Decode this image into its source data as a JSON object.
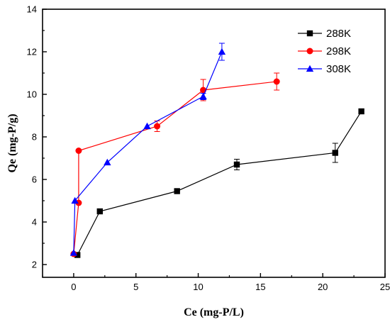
{
  "chart_data": {
    "type": "line",
    "xlabel": "Ce (mg-P/L)",
    "ylabel": "Qe (mg-P/g)",
    "xlim": [
      -2.5,
      25
    ],
    "ylim": [
      1.4,
      14
    ],
    "xticks": [
      0,
      5,
      10,
      15,
      20,
      25
    ],
    "yticks": [
      2,
      4,
      6,
      8,
      10,
      12,
      14
    ],
    "legend_position": "top-right",
    "grid": false,
    "series": [
      {
        "name": "288K",
        "color": "#000000",
        "marker": "square",
        "points": [
          {
            "x": 0.3,
            "y": 2.45,
            "err": 0
          },
          {
            "x": 2.1,
            "y": 4.5,
            "err": 0
          },
          {
            "x": 8.3,
            "y": 5.45,
            "err": 0
          },
          {
            "x": 13.1,
            "y": 6.7,
            "err": 0.25
          },
          {
            "x": 21.0,
            "y": 7.25,
            "err": 0.45
          },
          {
            "x": 23.1,
            "y": 9.2,
            "err": 0
          }
        ]
      },
      {
        "name": "298K",
        "color": "#ff0000",
        "marker": "circle",
        "points": [
          {
            "x": 0.0,
            "y": 2.5,
            "err": 0
          },
          {
            "x": 0.4,
            "y": 4.9,
            "err": 0
          },
          {
            "x": 0.4,
            "y": 7.35,
            "err": 0
          },
          {
            "x": 6.7,
            "y": 8.5,
            "err": 0.25
          },
          {
            "x": 10.4,
            "y": 10.2,
            "err": 0.5
          },
          {
            "x": 16.3,
            "y": 10.6,
            "err": 0.4
          }
        ]
      },
      {
        "name": "308K",
        "color": "#0000ff",
        "marker": "triangle",
        "points": [
          {
            "x": 0.0,
            "y": 2.55,
            "err": 0
          },
          {
            "x": 0.1,
            "y": 5.0,
            "err": 0
          },
          {
            "x": 2.7,
            "y": 6.8,
            "err": 0
          },
          {
            "x": 5.9,
            "y": 8.5,
            "err": 0
          },
          {
            "x": 10.4,
            "y": 9.9,
            "err": 0.15
          },
          {
            "x": 11.9,
            "y": 12.0,
            "err": 0.4
          }
        ]
      }
    ]
  }
}
